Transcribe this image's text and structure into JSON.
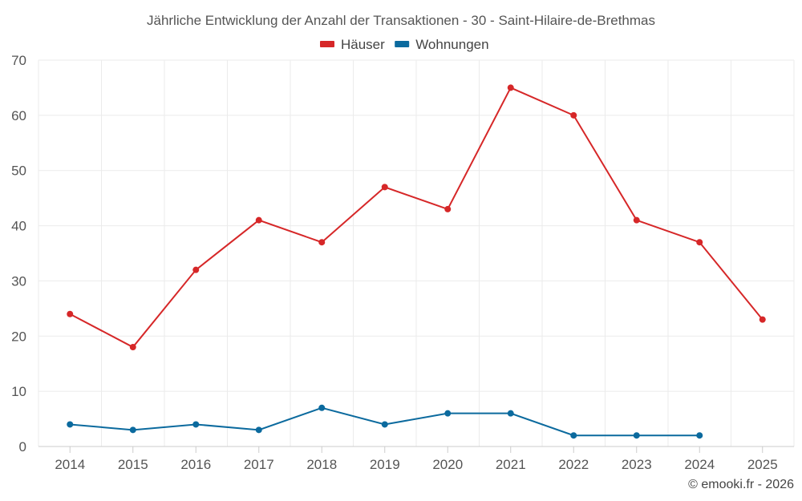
{
  "chart_data": {
    "type": "line",
    "title": "Jährliche Entwicklung der Anzahl der Transaktionen - 30 - Saint-Hilaire-de-Brethmas",
    "categories": [
      "2014",
      "2015",
      "2016",
      "2017",
      "2018",
      "2019",
      "2020",
      "2021",
      "2022",
      "2023",
      "2024",
      "2025"
    ],
    "series": [
      {
        "name": "Häuser",
        "color": "#d62728",
        "values": [
          24,
          18,
          32,
          41,
          37,
          47,
          43,
          65,
          60,
          41,
          37,
          23
        ]
      },
      {
        "name": "Wohnungen",
        "color": "#0b6a9e",
        "values": [
          4,
          3,
          4,
          3,
          7,
          4,
          6,
          6,
          2,
          2,
          2,
          null
        ]
      }
    ],
    "ylim": [
      0,
      70
    ],
    "yticks": [
      0,
      10,
      20,
      30,
      40,
      50,
      60,
      70
    ],
    "grid": true,
    "legend": "top-center",
    "xlabel": "",
    "ylabel": ""
  },
  "credit": "© emooki.fr - 2026"
}
